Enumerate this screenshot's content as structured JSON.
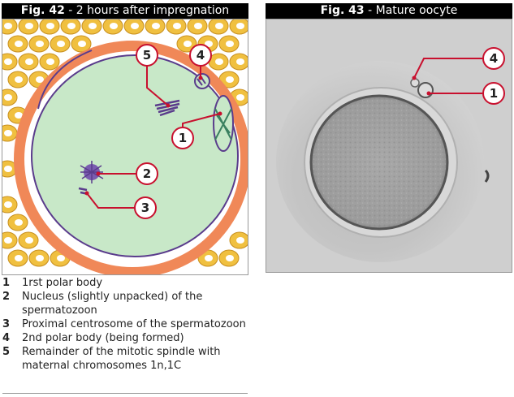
{
  "fig42": {
    "label": "Fig. 42",
    "caption": " - 2 hours after impregnation"
  },
  "fig43": {
    "label": "Fig. 43",
    "caption": " - Mature oocyte"
  },
  "callouts42": [
    "5",
    "4",
    "1",
    "2",
    "3"
  ],
  "callouts43": [
    "4",
    "1"
  ],
  "legend": [
    {
      "num": "1",
      "text": "1rst polar body"
    },
    {
      "num": "2",
      "text": "Nucleus (slightly unpacked) of the spermatozoon"
    },
    {
      "num": "3",
      "text": "Proximal centrosome of the spermatozoon"
    },
    {
      "num": "4",
      "text": "2nd polar body (being formed)"
    },
    {
      "num": "5",
      "text": "Remainder of the mitotic spindle with maternal chromosomes 1n,1C"
    }
  ],
  "colors": {
    "title_bg": "#000000",
    "cytoplasm": "#c8e8c8",
    "zona": "#f08858",
    "follicle_cell": "#f0c040",
    "follicle_nucleus": "#ffffff",
    "chromatin": "#5a3c8c",
    "callout_line": "#c8102e",
    "photo_bg": "#cfcfcf"
  }
}
